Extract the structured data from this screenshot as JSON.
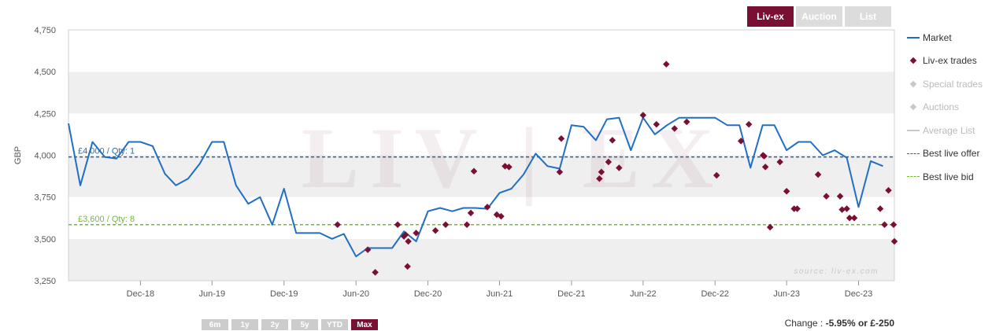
{
  "tabs": [
    {
      "label": "Liv-ex",
      "active": true
    },
    {
      "label": "Auction",
      "active": false
    },
    {
      "label": "List",
      "active": false
    }
  ],
  "legend": [
    {
      "label": "Market",
      "type": "line",
      "color": "#1f6fc5",
      "dim": false
    },
    {
      "label": "Liv-ex trades",
      "type": "diamond",
      "color": "#7a0f34",
      "dim": false
    },
    {
      "label": "Special trades",
      "type": "diamond",
      "color": "#c8c8c8",
      "dim": true
    },
    {
      "label": "Auctions",
      "type": "diamond",
      "color": "#c8c8c8",
      "dim": true
    },
    {
      "label": "Average List",
      "type": "line",
      "color": "#c8c8c8",
      "dim": true
    },
    {
      "label": "Best live offer",
      "type": "dash",
      "color": "#2f5f8a",
      "dim": false
    },
    {
      "label": "Best live bid",
      "type": "dash",
      "color": "#6cbe2a",
      "dim": false
    }
  ],
  "ranges": [
    {
      "label": "6m",
      "active": false
    },
    {
      "label": "1y",
      "active": false
    },
    {
      "label": "2y",
      "active": false
    },
    {
      "label": "5y",
      "active": false
    },
    {
      "label": "YTD",
      "active": false
    },
    {
      "label": "Max",
      "active": true
    }
  ],
  "change": {
    "label": "Change :",
    "value": "-5.95% or £-250"
  },
  "watermark": {
    "text": "LIV | EX",
    "source": "source: liv-ex.com"
  },
  "colors": {
    "accent": "#7a0f34",
    "market": "#1f6fc5",
    "offer": "#2f5f8a",
    "bid": "#6cbe2a"
  },
  "chart_data": {
    "type": "line",
    "ylabel": "GBP",
    "ylim": [
      3250,
      4750
    ],
    "yticks": [
      3250,
      3500,
      3750,
      4000,
      4250,
      4500,
      4750
    ],
    "xlim": [
      "2018-06-01",
      "2024-03-01"
    ],
    "xticks": [
      {
        "label": "Dec-18",
        "x": "2018-12-01"
      },
      {
        "label": "Jun-19",
        "x": "2019-06-01"
      },
      {
        "label": "Dec-19",
        "x": "2019-12-01"
      },
      {
        "label": "Jun-20",
        "x": "2020-06-01"
      },
      {
        "label": "Dec-20",
        "x": "2020-12-01"
      },
      {
        "label": "Jun-21",
        "x": "2021-06-01"
      },
      {
        "label": "Dec-21",
        "x": "2021-12-01"
      },
      {
        "label": "Jun-22",
        "x": "2022-06-01"
      },
      {
        "label": "Dec-22",
        "x": "2022-12-01"
      },
      {
        "label": "Jun-23",
        "x": "2023-06-01"
      },
      {
        "label": "Dec-23",
        "x": "2023-12-01"
      }
    ],
    "grid": false,
    "legend_position": "right",
    "series": [
      {
        "name": "Market",
        "type": "line",
        "points": [
          [
            "2018-06-01",
            4190
          ],
          [
            "2018-07-01",
            3820
          ],
          [
            "2018-08-01",
            4080
          ],
          [
            "2018-09-01",
            3990
          ],
          [
            "2018-10-01",
            3980
          ],
          [
            "2018-11-01",
            4080
          ],
          [
            "2018-12-01",
            4080
          ],
          [
            "2019-01-01",
            4055
          ],
          [
            "2019-02-01",
            3890
          ],
          [
            "2019-03-01",
            3820
          ],
          [
            "2019-04-01",
            3860
          ],
          [
            "2019-05-01",
            3950
          ],
          [
            "2019-06-01",
            4080
          ],
          [
            "2019-07-01",
            4080
          ],
          [
            "2019-08-01",
            3820
          ],
          [
            "2019-09-01",
            3710
          ],
          [
            "2019-10-01",
            3750
          ],
          [
            "2019-11-01",
            3585
          ],
          [
            "2019-12-01",
            3800
          ],
          [
            "2020-01-01",
            3535
          ],
          [
            "2020-02-01",
            3535
          ],
          [
            "2020-03-01",
            3535
          ],
          [
            "2020-04-01",
            3500
          ],
          [
            "2020-05-01",
            3530
          ],
          [
            "2020-06-01",
            3395
          ],
          [
            "2020-07-01",
            3445
          ],
          [
            "2020-08-01",
            3445
          ],
          [
            "2020-09-01",
            3445
          ],
          [
            "2020-10-01",
            3545
          ],
          [
            "2020-11-01",
            3485
          ],
          [
            "2020-12-01",
            3665
          ],
          [
            "2021-01-01",
            3685
          ],
          [
            "2021-02-01",
            3665
          ],
          [
            "2021-03-01",
            3685
          ],
          [
            "2021-04-01",
            3685
          ],
          [
            "2021-05-01",
            3680
          ],
          [
            "2021-06-01",
            3775
          ],
          [
            "2021-07-01",
            3800
          ],
          [
            "2021-08-01",
            3885
          ],
          [
            "2021-09-01",
            4010
          ],
          [
            "2021-10-01",
            3935
          ],
          [
            "2021-11-01",
            3920
          ],
          [
            "2021-12-01",
            4180
          ],
          [
            "2022-01-01",
            4170
          ],
          [
            "2022-02-01",
            4090
          ],
          [
            "2022-03-01",
            4215
          ],
          [
            "2022-04-01",
            4225
          ],
          [
            "2022-05-01",
            4030
          ],
          [
            "2022-06-01",
            4225
          ],
          [
            "2022-07-01",
            4125
          ],
          [
            "2022-08-01",
            4180
          ],
          [
            "2022-09-01",
            4225
          ],
          [
            "2022-10-01",
            4225
          ],
          [
            "2022-11-01",
            4225
          ],
          [
            "2022-12-01",
            4225
          ],
          [
            "2023-01-01",
            4180
          ],
          [
            "2023-02-01",
            4180
          ],
          [
            "2023-03-01",
            3925
          ],
          [
            "2023-04-01",
            4180
          ],
          [
            "2023-05-01",
            4180
          ],
          [
            "2023-06-01",
            4030
          ],
          [
            "2023-07-01",
            4080
          ],
          [
            "2023-08-01",
            4080
          ],
          [
            "2023-09-01",
            4000
          ],
          [
            "2023-10-01",
            4030
          ],
          [
            "2023-11-01",
            3985
          ],
          [
            "2023-12-01",
            3690
          ],
          [
            "2024-01-01",
            3965
          ],
          [
            "2024-02-01",
            3935
          ]
        ]
      },
      {
        "name": "Liv-ex trades",
        "type": "scatter",
        "points": [
          [
            "2020-04-15",
            3585
          ],
          [
            "2020-07-01",
            3435
          ],
          [
            "2020-07-20",
            3300
          ],
          [
            "2020-09-15",
            3585
          ],
          [
            "2020-10-01",
            3515
          ],
          [
            "2020-10-05",
            3525
          ],
          [
            "2020-10-10",
            3335
          ],
          [
            "2020-10-12",
            3485
          ],
          [
            "2020-11-01",
            3535
          ],
          [
            "2020-12-20",
            3550
          ],
          [
            "2021-01-15",
            3585
          ],
          [
            "2021-03-10",
            3585
          ],
          [
            "2021-03-20",
            3655
          ],
          [
            "2021-03-28",
            3905
          ],
          [
            "2021-05-01",
            3690
          ],
          [
            "2021-05-25",
            3645
          ],
          [
            "2021-06-05",
            3635
          ],
          [
            "2021-06-15",
            3935
          ],
          [
            "2021-06-25",
            3930
          ],
          [
            "2021-11-01",
            3900
          ],
          [
            "2021-11-05",
            4100
          ],
          [
            "2022-02-10",
            3860
          ],
          [
            "2022-02-15",
            3900
          ],
          [
            "2022-03-05",
            3960
          ],
          [
            "2022-03-15",
            4090
          ],
          [
            "2022-04-01",
            3925
          ],
          [
            "2022-06-01",
            4240
          ],
          [
            "2022-07-05",
            4185
          ],
          [
            "2022-07-30",
            4545
          ],
          [
            "2022-08-20",
            4160
          ],
          [
            "2022-09-20",
            4200
          ],
          [
            "2022-12-05",
            3880
          ],
          [
            "2023-02-05",
            4085
          ],
          [
            "2023-02-25",
            4185
          ],
          [
            "2023-04-02",
            4000
          ],
          [
            "2023-04-05",
            3995
          ],
          [
            "2023-04-08",
            3930
          ],
          [
            "2023-04-20",
            3570
          ],
          [
            "2023-05-15",
            3960
          ],
          [
            "2023-06-01",
            3785
          ],
          [
            "2023-06-20",
            3680
          ],
          [
            "2023-06-28",
            3680
          ],
          [
            "2023-08-20",
            3885
          ],
          [
            "2023-09-10",
            3755
          ],
          [
            "2023-10-15",
            3755
          ],
          [
            "2023-10-20",
            3675
          ],
          [
            "2023-11-01",
            3680
          ],
          [
            "2023-11-08",
            3625
          ],
          [
            "2023-11-20",
            3625
          ],
          [
            "2024-01-25",
            3680
          ],
          [
            "2024-02-05",
            3585
          ],
          [
            "2024-02-15",
            3790
          ],
          [
            "2024-02-28",
            3585
          ],
          [
            "2024-03-01",
            3485
          ]
        ]
      },
      {
        "name": "Best live offer",
        "type": "hline",
        "value": 3990,
        "label": "£4,000 / Qty: 1"
      },
      {
        "name": "Best live bid",
        "type": "hline",
        "value": 3585,
        "label": "£3,600 / Qty: 8"
      }
    ]
  }
}
